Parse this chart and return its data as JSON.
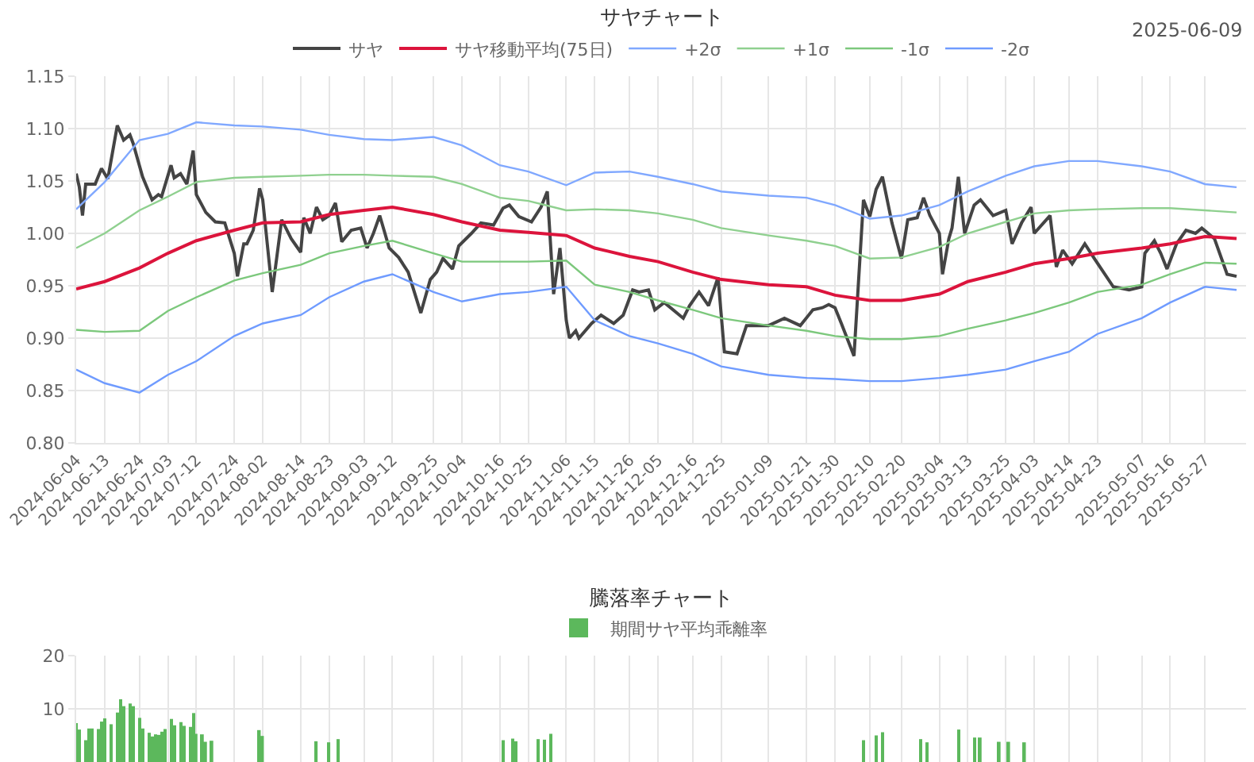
{
  "chart_data": [
    {
      "type": "line",
      "title": "サヤチャート",
      "annotations": [
        "2025-06-09"
      ],
      "legend": "top",
      "grid": true,
      "xlim": [
        "2024-06-04",
        "2025-06-09"
      ],
      "xticks": [
        "2024-06-04",
        "2024-06-13",
        "2024-06-24",
        "2024-07-03",
        "2024-07-12",
        "2024-07-24",
        "2024-08-02",
        "2024-08-14",
        "2024-08-23",
        "2024-09-03",
        "2024-09-12",
        "2024-09-25",
        "2024-10-04",
        "2024-10-16",
        "2024-10-25",
        "2024-11-06",
        "2024-11-15",
        "2024-11-26",
        "2024-12-05",
        "2024-12-16",
        "2024-12-25",
        "2025-01-09",
        "2025-01-21",
        "2025-01-30",
        "2025-02-10",
        "2025-02-20",
        "2025-03-04",
        "2025-03-13",
        "2025-03-25",
        "2025-04-03",
        "2025-04-14",
        "2025-04-23",
        "2025-05-07",
        "2025-05-16",
        "2025-05-27"
      ],
      "ylim": [
        0.8,
        1.15
      ],
      "yticks": [
        {
          "value": 0.8,
          "label": "0.80"
        },
        0.85,
        {
          "value": 0.9,
          "label": "0.90"
        },
        0.95,
        {
          "value": 1.0,
          "label": "1.00"
        },
        1.05,
        {
          "value": 1.1,
          "label": "1.10"
        },
        1.15
      ],
      "series": [
        {
          "name": "サヤ",
          "color": "#444444",
          "x": [
            "2024-06-04",
            "2024-06-05",
            "2024-06-06",
            "2024-06-07",
            "2024-06-10",
            "2024-06-12",
            "2024-06-14",
            "2024-06-17",
            "2024-06-19",
            "2024-06-21",
            "2024-06-22",
            "2024-06-25",
            "2024-06-28",
            "2024-06-30",
            "2024-07-01",
            "2024-07-04",
            "2024-07-05",
            "2024-07-07",
            "2024-07-09",
            "2024-07-11",
            "2024-07-12",
            "2024-07-15",
            "2024-07-18",
            "2024-07-21",
            "2024-07-24",
            "2024-07-25",
            "2024-07-27",
            "2024-07-28",
            "2024-07-30",
            "2024-08-01",
            "2024-08-02",
            "2024-08-05",
            "2024-08-08",
            "2024-08-11",
            "2024-08-14",
            "2024-08-15",
            "2024-08-17",
            "2024-08-19",
            "2024-08-21",
            "2024-08-23",
            "2024-08-25",
            "2024-08-27",
            "2024-08-30",
            "2024-09-02",
            "2024-09-04",
            "2024-09-06",
            "2024-09-08",
            "2024-09-11",
            "2024-09-14",
            "2024-09-17",
            "2024-09-21",
            "2024-09-24",
            "2024-09-26",
            "2024-09-28",
            "2024-10-01",
            "2024-10-03",
            "2024-10-07",
            "2024-10-10",
            "2024-10-14",
            "2024-10-17",
            "2024-10-19",
            "2024-10-22",
            "2024-10-26",
            "2024-10-29",
            "2024-10-31",
            "2024-11-02",
            "2024-11-04",
            "2024-11-06",
            "2024-11-07",
            "2024-11-09",
            "2024-11-10",
            "2024-11-14",
            "2024-11-17",
            "2024-11-21",
            "2024-11-24",
            "2024-11-27",
            "2024-11-29",
            "2024-12-02",
            "2024-12-04",
            "2024-12-07",
            "2024-12-13",
            "2024-12-15",
            "2024-12-18",
            "2024-12-21",
            "2024-12-24",
            "2024-12-26",
            "2024-12-30",
            "2025-01-02",
            "2025-01-09",
            "2025-01-14",
            "2025-01-19",
            "2025-01-23",
            "2025-01-26",
            "2025-01-28",
            "2025-01-30",
            "2025-02-01",
            "2025-02-05",
            "2025-02-08",
            "2025-02-10",
            "2025-02-12",
            "2025-02-14",
            "2025-02-17",
            "2025-02-20",
            "2025-02-22",
            "2025-02-25",
            "2025-02-27",
            "2025-03-01",
            "2025-03-04",
            "2025-03-05",
            "2025-03-07",
            "2025-03-08",
            "2025-03-10",
            "2025-03-12",
            "2025-03-15",
            "2025-03-17",
            "2025-03-21",
            "2025-03-25",
            "2025-03-27",
            "2025-03-30",
            "2025-04-02",
            "2025-04-03",
            "2025-04-08",
            "2025-04-10",
            "2025-04-12",
            "2025-04-15",
            "2025-04-19",
            "2025-04-22",
            "2025-04-28",
            "2025-05-03",
            "2025-05-07",
            "2025-05-08",
            "2025-05-11",
            "2025-05-13",
            "2025-05-15",
            "2025-05-18",
            "2025-05-21",
            "2025-05-24",
            "2025-05-26",
            "2025-05-30",
            "2025-06-03",
            "2025-06-06"
          ],
          "values": [
            1.057,
            1.044,
            1.017,
            1.047,
            1.047,
            1.062,
            1.052,
            1.103,
            1.089,
            1.094,
            1.086,
            1.054,
            1.032,
            1.037,
            1.035,
            1.065,
            1.053,
            1.057,
            1.047,
            1.079,
            1.037,
            1.02,
            1.011,
            1.01,
            0.981,
            0.959,
            0.99,
            0.99,
            1.003,
            1.043,
            1.032,
            0.944,
            1.013,
            0.995,
            0.982,
            1.015,
            1.0,
            1.025,
            1.013,
            1.017,
            1.029,
            0.992,
            1.003,
            1.005,
            0.986,
            1.0,
            1.017,
            0.986,
            0.977,
            0.963,
            0.924,
            0.956,
            0.963,
            0.976,
            0.966,
            0.988,
            1.0,
            1.01,
            1.008,
            1.024,
            1.027,
            1.016,
            1.011,
            1.025,
            1.04,
            0.942,
            0.986,
            0.917,
            0.9,
            0.907,
            0.9,
            0.914,
            0.922,
            0.914,
            0.922,
            0.946,
            0.944,
            0.946,
            0.927,
            0.934,
            0.919,
            0.931,
            0.944,
            0.931,
            0.958,
            0.887,
            0.885,
            0.912,
            0.912,
            0.919,
            0.912,
            0.927,
            0.929,
            0.932,
            0.929,
            0.914,
            0.883,
            1.032,
            1.016,
            1.042,
            1.054,
            1.01,
            0.976,
            1.013,
            1.015,
            1.034,
            1.017,
            1.0,
            0.961,
            0.995,
            1.005,
            1.054,
            1.0,
            1.027,
            1.032,
            1.017,
            1.022,
            0.99,
            1.01,
            1.025,
            1.0,
            1.017,
            0.968,
            0.984,
            0.971,
            0.99,
            0.976,
            0.949,
            0.946,
            0.949,
            0.981,
            0.993,
            0.981,
            0.966,
            0.99,
            1.003,
            1.0,
            1.005,
            0.995,
            0.961,
            0.959
          ]
        },
        {
          "name": "サヤ移動平均(75日)",
          "color": "#dc143c",
          "x": [
            "2024-06-04",
            "2024-06-13",
            "2024-06-24",
            "2024-07-03",
            "2024-07-12",
            "2024-07-24",
            "2024-08-02",
            "2024-08-14",
            "2024-08-23",
            "2024-09-03",
            "2024-09-12",
            "2024-09-25",
            "2024-10-04",
            "2024-10-16",
            "2024-10-25",
            "2024-11-06",
            "2024-11-15",
            "2024-11-26",
            "2024-12-05",
            "2024-12-16",
            "2024-12-25",
            "2025-01-09",
            "2025-01-21",
            "2025-01-30",
            "2025-02-10",
            "2025-02-20",
            "2025-03-04",
            "2025-03-13",
            "2025-03-25",
            "2025-04-03",
            "2025-04-14",
            "2025-04-23",
            "2025-05-07",
            "2025-05-16",
            "2025-05-27",
            "2025-06-06"
          ],
          "values": [
            0.947,
            0.954,
            0.967,
            0.981,
            0.993,
            1.003,
            1.01,
            1.011,
            1.018,
            1.022,
            1.025,
            1.018,
            1.011,
            1.003,
            1.001,
            0.998,
            0.986,
            0.978,
            0.973,
            0.963,
            0.956,
            0.951,
            0.949,
            0.941,
            0.936,
            0.936,
            0.942,
            0.954,
            0.963,
            0.971,
            0.976,
            0.981,
            0.986,
            0.99,
            0.997,
            0.995
          ]
        },
        {
          "name": "+2σ",
          "color": "#80a8ff",
          "x": [
            "2024-06-04",
            "2024-06-13",
            "2024-06-24",
            "2024-07-03",
            "2024-07-12",
            "2024-07-24",
            "2024-08-02",
            "2024-08-14",
            "2024-08-23",
            "2024-09-03",
            "2024-09-12",
            "2024-09-25",
            "2024-10-04",
            "2024-10-16",
            "2024-10-25",
            "2024-11-06",
            "2024-11-15",
            "2024-11-26",
            "2024-12-05",
            "2024-12-16",
            "2024-12-25",
            "2025-01-09",
            "2025-01-21",
            "2025-01-30",
            "2025-02-10",
            "2025-02-20",
            "2025-03-04",
            "2025-03-13",
            "2025-03-25",
            "2025-04-03",
            "2025-04-14",
            "2025-04-23",
            "2025-05-07",
            "2025-05-16",
            "2025-05-27",
            "2025-06-06"
          ],
          "values": [
            1.023,
            1.049,
            1.089,
            1.095,
            1.106,
            1.103,
            1.102,
            1.099,
            1.094,
            1.09,
            1.089,
            1.092,
            1.084,
            1.065,
            1.059,
            1.046,
            1.058,
            1.059,
            1.054,
            1.047,
            1.04,
            1.036,
            1.034,
            1.027,
            1.014,
            1.017,
            1.027,
            1.04,
            1.055,
            1.064,
            1.069,
            1.069,
            1.064,
            1.059,
            1.047,
            1.044
          ]
        },
        {
          "name": "+1σ",
          "color": "#8fd08f",
          "x": [
            "2024-06-04",
            "2024-06-13",
            "2024-06-24",
            "2024-07-03",
            "2024-07-12",
            "2024-07-24",
            "2024-08-02",
            "2024-08-14",
            "2024-08-23",
            "2024-09-03",
            "2024-09-12",
            "2024-09-25",
            "2024-10-04",
            "2024-10-16",
            "2024-10-25",
            "2024-11-06",
            "2024-11-15",
            "2024-11-26",
            "2024-12-05",
            "2024-12-16",
            "2024-12-25",
            "2025-01-09",
            "2025-01-21",
            "2025-01-30",
            "2025-02-10",
            "2025-02-20",
            "2025-03-04",
            "2025-03-13",
            "2025-03-25",
            "2025-04-03",
            "2025-04-14",
            "2025-04-23",
            "2025-05-07",
            "2025-05-16",
            "2025-05-27",
            "2025-06-06"
          ],
          "values": [
            0.986,
            1.0,
            1.022,
            1.035,
            1.049,
            1.053,
            1.054,
            1.055,
            1.056,
            1.056,
            1.055,
            1.054,
            1.047,
            1.034,
            1.031,
            1.022,
            1.023,
            1.022,
            1.019,
            1.013,
            1.005,
            0.998,
            0.993,
            0.988,
            0.976,
            0.977,
            0.987,
            1.0,
            1.011,
            1.019,
            1.022,
            1.023,
            1.024,
            1.024,
            1.022,
            1.02
          ]
        },
        {
          "name": "-1σ",
          "color": "#7cc87c",
          "x": [
            "2024-06-04",
            "2024-06-13",
            "2024-06-24",
            "2024-07-03",
            "2024-07-12",
            "2024-07-24",
            "2024-08-02",
            "2024-08-14",
            "2024-08-23",
            "2024-09-03",
            "2024-09-12",
            "2024-09-25",
            "2024-10-04",
            "2024-10-16",
            "2024-10-25",
            "2024-11-06",
            "2024-11-15",
            "2024-11-26",
            "2024-12-05",
            "2024-12-16",
            "2024-12-25",
            "2025-01-09",
            "2025-01-21",
            "2025-01-30",
            "2025-02-10",
            "2025-02-20",
            "2025-03-04",
            "2025-03-13",
            "2025-03-25",
            "2025-04-03",
            "2025-04-14",
            "2025-04-23",
            "2025-05-07",
            "2025-05-16",
            "2025-05-27",
            "2025-06-06"
          ],
          "values": [
            0.908,
            0.906,
            0.907,
            0.926,
            0.939,
            0.955,
            0.962,
            0.97,
            0.981,
            0.988,
            0.993,
            0.981,
            0.973,
            0.973,
            0.973,
            0.974,
            0.951,
            0.944,
            0.936,
            0.927,
            0.919,
            0.912,
            0.907,
            0.902,
            0.899,
            0.899,
            0.902,
            0.909,
            0.917,
            0.924,
            0.934,
            0.944,
            0.951,
            0.961,
            0.972,
            0.971
          ]
        },
        {
          "name": "-2σ",
          "color": "#6f9bff",
          "x": [
            "2024-06-04",
            "2024-06-13",
            "2024-06-24",
            "2024-07-03",
            "2024-07-12",
            "2024-07-24",
            "2024-08-02",
            "2024-08-14",
            "2024-08-23",
            "2024-09-03",
            "2024-09-12",
            "2024-09-25",
            "2024-10-04",
            "2024-10-16",
            "2024-10-25",
            "2024-11-06",
            "2024-11-15",
            "2024-11-26",
            "2024-12-05",
            "2024-12-16",
            "2024-12-25",
            "2025-01-09",
            "2025-01-21",
            "2025-01-30",
            "2025-02-10",
            "2025-02-20",
            "2025-03-04",
            "2025-03-13",
            "2025-03-25",
            "2025-04-03",
            "2025-04-14",
            "2025-04-23",
            "2025-05-07",
            "2025-05-16",
            "2025-05-27",
            "2025-06-06"
          ],
          "values": [
            0.87,
            0.857,
            0.848,
            0.865,
            0.878,
            0.902,
            0.914,
            0.922,
            0.939,
            0.954,
            0.961,
            0.944,
            0.935,
            0.942,
            0.944,
            0.949,
            0.917,
            0.902,
            0.895,
            0.885,
            0.873,
            0.865,
            0.862,
            0.861,
            0.859,
            0.859,
            0.862,
            0.865,
            0.87,
            0.878,
            0.887,
            0.904,
            0.919,
            0.934,
            0.949,
            0.946
          ]
        }
      ]
    },
    {
      "type": "bar",
      "title": "騰落率チャート",
      "legend": "top",
      "grid": true,
      "tick_labels": "y",
      "xlim": [
        "2024-06-04",
        "2025-06-09"
      ],
      "xticks": [
        {
          "value": "2024-06-04",
          "label": null
        },
        {
          "value": "2024-06-13",
          "label": null
        },
        {
          "value": "2024-06-24",
          "label": null
        },
        {
          "value": "2024-07-03",
          "label": null
        },
        {
          "value": "2024-07-12",
          "label": null
        },
        {
          "value": "2024-07-24",
          "label": null
        },
        {
          "value": "2024-08-02",
          "label": null
        },
        {
          "value": "2024-08-14",
          "label": null
        },
        {
          "value": "2024-08-23",
          "label": null
        },
        {
          "value": "2024-09-03",
          "label": null
        },
        {
          "value": "2024-09-12",
          "label": null
        },
        {
          "value": "2024-09-25",
          "label": null
        },
        {
          "value": "2024-10-04",
          "label": null
        },
        {
          "value": "2024-10-16",
          "label": null
        },
        {
          "value": "2024-10-25",
          "label": null
        },
        {
          "value": "2024-11-06",
          "label": null
        },
        {
          "value": "2024-11-15",
          "label": null
        },
        {
          "value": "2024-11-26",
          "label": null
        },
        {
          "value": "2024-12-05",
          "label": null
        },
        {
          "value": "2024-12-16",
          "label": null
        },
        {
          "value": "2024-12-25",
          "label": null
        },
        {
          "value": "2025-01-09",
          "label": null
        },
        {
          "value": "2025-01-21",
          "label": null
        },
        {
          "value": "2025-01-30",
          "label": null
        },
        {
          "value": "2025-02-10",
          "label": null
        },
        {
          "value": "2025-02-20",
          "label": null
        },
        {
          "value": "2025-03-04",
          "label": null
        },
        {
          "value": "2025-03-13",
          "label": null
        },
        {
          "value": "2025-03-25",
          "label": null
        },
        {
          "value": "2025-04-03",
          "label": null
        },
        {
          "value": "2025-04-14",
          "label": null
        },
        {
          "value": "2025-04-23",
          "label": null
        },
        {
          "value": "2025-05-07",
          "label": null
        },
        {
          "value": "2025-05-16",
          "label": null
        },
        {
          "value": "2025-05-27",
          "label": null
        }
      ],
      "ylim": [
        0,
        20
      ],
      "yticks": [
        10,
        20
      ],
      "series": [
        {
          "name": "期間サヤ平均乖離率",
          "color": "#5cb85c",
          "x": [
            "2024-06-04",
            "2024-06-05",
            "2024-06-07",
            "2024-06-08",
            "2024-06-09",
            "2024-06-11",
            "2024-06-12",
            "2024-06-13",
            "2024-06-15",
            "2024-06-17",
            "2024-06-18",
            "2024-06-19",
            "2024-06-21",
            "2024-06-22",
            "2024-06-24",
            "2024-06-25",
            "2024-06-27",
            "2024-06-28",
            "2024-06-29",
            "2024-06-30",
            "2024-07-01",
            "2024-07-02",
            "2024-07-04",
            "2024-07-05",
            "2024-07-07",
            "2024-07-08",
            "2024-07-10",
            "2024-07-11",
            "2024-07-12",
            "2024-07-14",
            "2024-07-15",
            "2024-07-17",
            "2024-08-01",
            "2024-08-02",
            "2024-08-19",
            "2024-08-23",
            "2024-08-26",
            "2024-10-17",
            "2024-10-20",
            "2024-10-21",
            "2024-10-28",
            "2024-10-30",
            "2024-11-01",
            "2025-02-08",
            "2025-02-12",
            "2025-02-14",
            "2025-02-26",
            "2025-02-28",
            "2025-03-10",
            "2025-03-15",
            "2025-03-17",
            "2025-03-23",
            "2025-03-26",
            "2025-03-31"
          ],
          "values": [
            7.3,
            6.1,
            4.1,
            6.3,
            6.3,
            6.2,
            7.6,
            8.2,
            7.1,
            9.3,
            11.8,
            10.5,
            11.0,
            10.5,
            8.3,
            6.3,
            5.5,
            4.8,
            5.2,
            5.1,
            5.7,
            6.2,
            8.1,
            6.9,
            7.5,
            6.8,
            6.6,
            9.2,
            5.3,
            5.2,
            3.8,
            4.0,
            6.0,
            4.9,
            3.9,
            3.7,
            4.3,
            4.1,
            4.4,
            3.9,
            4.3,
            4.2,
            5.3,
            4.1,
            5.0,
            5.6,
            4.3,
            3.7,
            6.1,
            4.6,
            4.6,
            3.8,
            3.8,
            3.7
          ]
        }
      ]
    }
  ]
}
